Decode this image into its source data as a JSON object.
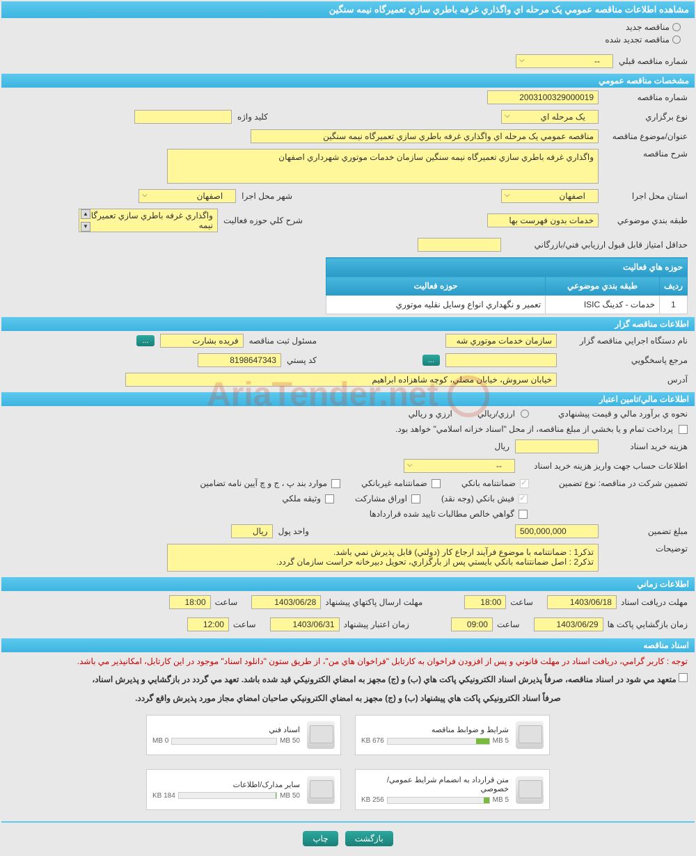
{
  "header": {
    "title": "مشاهده اطلاعات مناقصه عمومي يک مرحله اي واگذاري غرفه باطري سازي تعميرگاه نيمه سنگين"
  },
  "tender_status": {
    "new_label": "مناقصه جديد",
    "renewed_label": "مناقصه تجديد شده"
  },
  "prev_tender": {
    "label": "شماره مناقصه قبلي",
    "value": "--"
  },
  "sections": {
    "general": "مشخصات مناقصه عمومي",
    "organizer": "اطلاعات مناقصه گزار",
    "financial": "اطلاعات مالي/تامين اعتبار",
    "timing": "اطلاعات زماني",
    "documents": "اسناد مناقصه"
  },
  "general": {
    "tender_no_label": "شماره مناقصه",
    "tender_no": "2003100329000019",
    "holding_type_label": "نوع برگزاري",
    "holding_type": "يک مرحله اي",
    "keyword_label": "کليد واژه",
    "keyword": "",
    "title_label": "عنوان/موضوع مناقصه",
    "title": "مناقصه عمومي يک مرحله اي واگذاري غرفه باطري سازي تعميرگاه نيمه سنگين",
    "desc_label": "شرح مناقصه",
    "desc": "واگذاري غرفه باطري سازي تعميرگاه نيمه سنگين سازمان خدمات موتوري شهرداري اصفهان",
    "province_label": "استان محل اجرا",
    "province": "اصفهان",
    "city_label": "شهر محل اجرا",
    "city": "اصفهان",
    "category_label": "طبقه بندي موضوعي",
    "category": "خدمات بدون فهرست بها",
    "scope_label": "شرح کلي حوزه فعاليت",
    "scope": "واگذاري غرفه باطري سازي تعميرگاه نيمه",
    "min_score_label": "حداقل امتياز قابل قبول ارزيابي فني/بازرگاني",
    "min_score": ""
  },
  "activity_table": {
    "header": "حوزه هاي فعاليت",
    "col_row": "رديف",
    "col_category": "طبقه بندي موضوعي",
    "col_scope": "حوزه فعاليت",
    "rows": [
      {
        "n": "1",
        "category": "خدمات - کدينگ ISIC",
        "scope": "تعمير و نگهداري انواع وسايل نقليه موتوري"
      }
    ]
  },
  "organizer": {
    "agency_label": "نام دستگاه اجرايي مناقصه گزار",
    "agency": "سازمان خدمات موتوري شه",
    "registrar_label": "مسئول ثبت مناقصه",
    "registrar": "فريده بشارت",
    "more": "...",
    "contact_label": "مرجع پاسخگويي",
    "contact": "",
    "postal_label": "کد پستي",
    "postal": "8198647343",
    "address_label": "آدرس",
    "address": "خيابان سروش، خيابان مصلي، کوچه شاهزاده ابراهيم"
  },
  "financial": {
    "method_label": "نحوه ي برآورد مالي و قيمت پيشنهادي",
    "method_option1": "ارزي/ريالي",
    "method_option2": "ارزي و ريالي",
    "payment_note": "پرداخت تمام و يا بخشي از مبلغ مناقصه، از محل \"اسناد خزانه اسلامي\" خواهد بود.",
    "doc_cost_label": "هزينه خريد اسناد",
    "doc_cost": "",
    "currency1": "ريال",
    "account_label": "اطلاعات حساب جهت واريز هزينه خريد اسناد",
    "account": "--",
    "guarantee_intro": "تضمين شرکت در مناقصه:   نوع تضمين",
    "g1": "ضمانتنامه بانکي",
    "g2": "ضمانتنامه غيربانکي",
    "g3": "موارد بند پ ، ج و چ آيين نامه تضامين",
    "g4": "فيش بانکي (وجه نقد)",
    "g5": "اوراق مشارکت",
    "g6": "وثيقه ملکي",
    "g7": "گواهي خالص مطالبات تاييد شده قراردادها",
    "amount_label": "مبلغ تضمين",
    "amount": "500,000,000",
    "unit_label": "واحد پول",
    "unit": "ريال",
    "notes_label": "توضيحات",
    "notes": "تذکر1 : ضمانتنامه با موضوع فرآيند ارجاع کار (دولتي) قابل پذيرش نمي باشد.\nتذکر2 :  اصل ضمانتنامه بانکي بايستي پس از بارگزاري، تحويل دبيرخانه حراست سازمان گردد."
  },
  "timing": {
    "receive_deadline_label": "مهلت دريافت اسناد",
    "receive_date": "1403/06/18",
    "receive_time_label": "ساعت",
    "receive_time": "18:00",
    "submit_deadline_label": "مهلت ارسال پاکتهاي پيشنهاد",
    "submit_date": "1403/06/28",
    "submit_time_label": "ساعت",
    "submit_time": "18:00",
    "open_label": "زمان بازگشايي پاکت ها",
    "open_date": "1403/06/29",
    "open_time_label": "ساعت",
    "open_time": "09:00",
    "validity_label": "زمان اعتبار پيشنهاد",
    "validity_date": "1403/06/31",
    "validity_time_label": "ساعت",
    "validity_time": "12:00"
  },
  "doc_notes": {
    "red": "توجه : کاربر گرامي، دريافت اسناد در مهلت قانوني و پس از افزودن فراخوان به کارتابل \"فراخوان هاي من\"، از طريق ستون \"دانلود اسناد\" موجود در اين کارتابل، امکانپذير مي باشد.",
    "bold1": "متعهد مي شود در اسناد مناقصه، صرفاً پذيرش اسناد الکترونيکي پاکت هاي (ب) و (ج) مجهز به امضاي الکترونيکي قيد شده باشد. تعهد مي گردد در بازگشايي و پذيرش اسناد،",
    "bold2": "صرفاً اسناد الکترونيکي پاکت هاي پيشنهاد (ب) و (ج) مجهز به امضاي الکترونيکي صاحبان امضاي مجاز مورد پذيرش واقع گردد."
  },
  "documents": [
    {
      "title": "شرايط و ضوابط مناقصه",
      "used": "676 KB",
      "total": "5 MB",
      "pct": 13
    },
    {
      "title": "اسناد فني",
      "used": "0 MB",
      "total": "50 MB",
      "pct": 0
    },
    {
      "title": "متن قرارداد به انضمام شرايط عمومي/خصوصي",
      "used": "256 KB",
      "total": "5 MB",
      "pct": 5
    },
    {
      "title": "ساير مدارک/اطلاعات",
      "used": "184 KB",
      "total": "50 MB",
      "pct": 1
    }
  ],
  "footer": {
    "back": "بازگشت",
    "print": "چاپ"
  },
  "watermark": "AriaTender.net",
  "checkbox_symbol": "☐"
}
